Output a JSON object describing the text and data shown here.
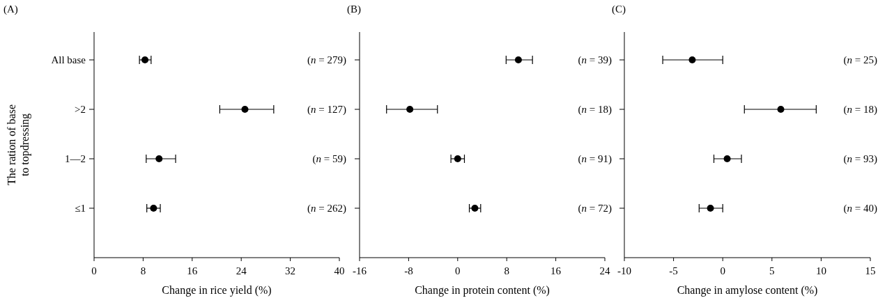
{
  "chart_data": [
    {
      "type": "scatter",
      "title": "(A)",
      "orientation": "horizontal",
      "categories": [
        "All base",
        ">2",
        "1—2",
        "≤1"
      ],
      "values": [
        8.3,
        24.6,
        10.6,
        9.7
      ],
      "errors": [
        [
          7.4,
          9.3
        ],
        [
          20.5,
          29.3
        ],
        [
          8.5,
          13.3
        ],
        [
          8.6,
          10.8
        ]
      ],
      "color": "#000000",
      "marker": "circle",
      "xlim": [
        0,
        40
      ],
      "xticks": [
        0,
        8,
        16,
        24,
        32,
        40
      ],
      "xlabel": "Change in rice yield (%)",
      "ylabel": "The ration of base\nto topdressing",
      "annotations": [
        "(n = 279)",
        "(n = 127)",
        "(n = 59)",
        "(n = 262)"
      ],
      "grid": false
    },
    {
      "type": "scatter",
      "title": "(B)",
      "orientation": "horizontal",
      "categories": [
        null,
        null,
        null,
        null
      ],
      "values": [
        9.9,
        -7.8,
        0,
        2.8
      ],
      "errors": [
        [
          7.9,
          12.2
        ],
        [
          -11.6,
          -3.3
        ],
        [
          -1.1,
          1.1
        ],
        [
          1.9,
          3.75
        ]
      ],
      "color": "#000000",
      "marker": "circle",
      "xlim": [
        -16,
        24
      ],
      "xticks": [
        -16,
        -8,
        0,
        8,
        16,
        24
      ],
      "xlabel": "Change in protein content (%)",
      "annotations": [
        "(n = 39)",
        "(n = 18)",
        "(n = 91)",
        "(n = 72)"
      ],
      "tick_labels": "x",
      "grid": false
    },
    {
      "type": "scatter",
      "title": "(C)",
      "orientation": "horizontal",
      "categories": [
        null,
        null,
        null,
        null
      ],
      "values": [
        -3.1,
        5.9,
        0.45,
        -1.25
      ],
      "errors": [
        [
          -6.1,
          0
        ],
        [
          2.2,
          9.5
        ],
        [
          -0.9,
          1.9
        ],
        [
          -2.4,
          0
        ]
      ],
      "color": "#000000",
      "marker": "circle",
      "xlim": [
        -10,
        15
      ],
      "xticks": [
        -10,
        -5,
        0,
        5,
        10,
        15
      ],
      "xlabel": "Change in amylose content (%)",
      "annotations": [
        "(n = 25)",
        "(n = 18)",
        "(n = 93)",
        "(n = 40)"
      ],
      "tick_labels": "x",
      "grid": false
    }
  ]
}
